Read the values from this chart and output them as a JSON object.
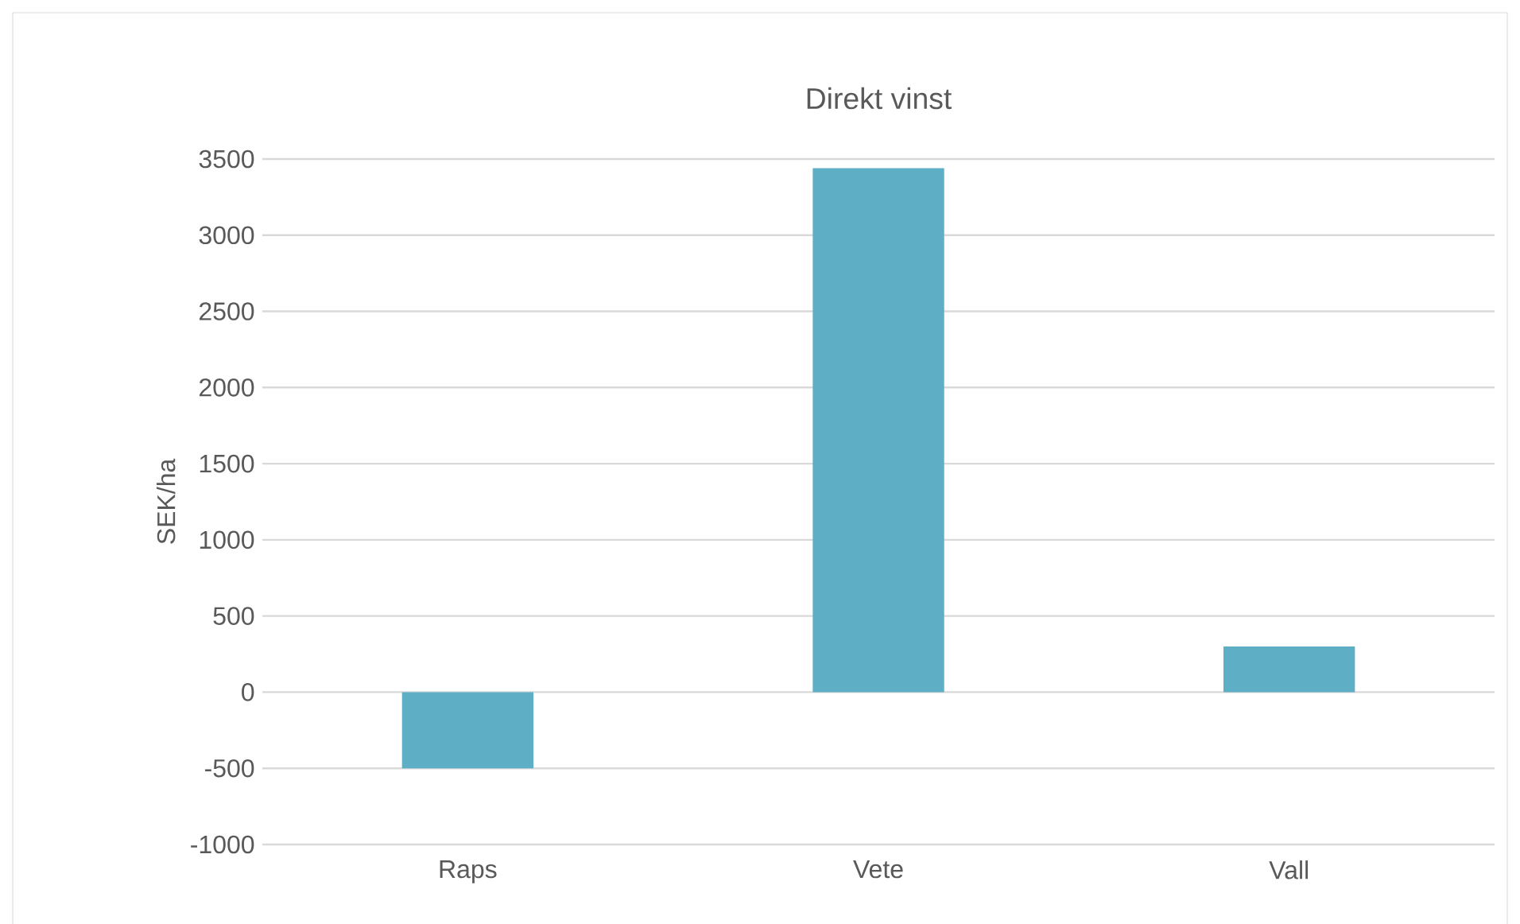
{
  "chart_data": {
    "type": "bar",
    "title": "Direkt vinst",
    "ylabel": "SEK/ha",
    "categories": [
      "Raps",
      "Vete",
      "Vall"
    ],
    "values": [
      -500,
      3440,
      300
    ],
    "color": "#5eaec6",
    "ylim": [
      -1000,
      3500
    ],
    "yticks": [
      -1000,
      -500,
      0,
      500,
      1000,
      1500,
      2000,
      2500,
      3000,
      3500
    ],
    "grid": "y"
  }
}
